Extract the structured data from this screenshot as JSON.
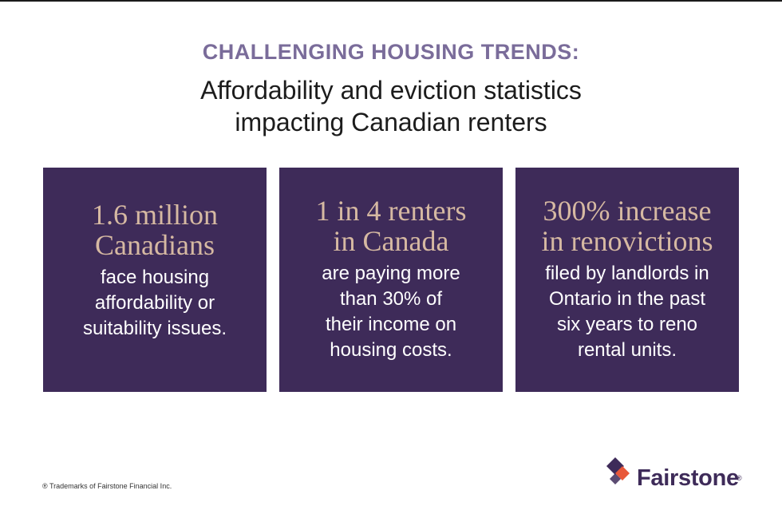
{
  "header": {
    "kicker": "CHALLENGING HOUSING TRENDS:",
    "headline_line1": "Affordability and eviction statistics",
    "headline_line2": "impacting Canadian renters"
  },
  "cards": [
    {
      "stat_line1": "1.6 million",
      "stat_line2": "Canadians",
      "desc_lines": [
        "face housing",
        "affordability or",
        "suitability issues."
      ]
    },
    {
      "stat_line1": "1 in 4 renters",
      "stat_line2": "in Canada",
      "desc_lines": [
        "are paying more",
        "than 30% of",
        "their income on",
        "housing costs."
      ]
    },
    {
      "stat_line1": "300% increase",
      "stat_line2": "in renovictions",
      "desc_lines": [
        "filed by landlords in",
        "Ontario in the past",
        "six years to reno",
        "rental units."
      ]
    }
  ],
  "footer": {
    "footnote": "® Trademarks of Fairstone Financial Inc.",
    "logo_text": "Fairstone",
    "logo_mark": "®"
  },
  "colors": {
    "card_background": "#3e2b59",
    "stat_text": "#d6b9a2",
    "kicker_text": "#7a6c9a",
    "logo_purple": "#3e2b59",
    "logo_orange": "#e8583a"
  }
}
